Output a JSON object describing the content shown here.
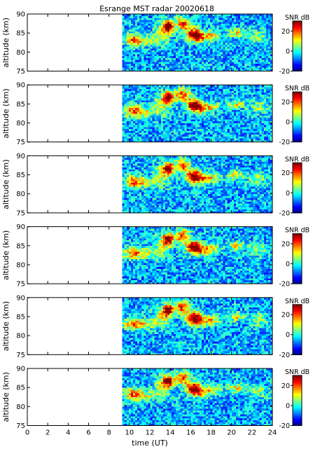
{
  "chart_data": {
    "type": "heatmap",
    "title": "Esrange MST radar 20020618",
    "xlabel": "time (UT)",
    "ylabel": "altitude (km)",
    "xlim": [
      0,
      24
    ],
    "ylim": [
      75,
      90
    ],
    "x_ticks": [
      "0",
      "2",
      "4",
      "6",
      "8",
      "10",
      "12",
      "14",
      "16",
      "18",
      "20",
      "22",
      "24"
    ],
    "y_ticks": [
      "75",
      "80",
      "85",
      "90"
    ],
    "colorbar": {
      "label": "SNR dB",
      "range": [
        -20,
        30
      ],
      "ticks": [
        "20",
        "0",
        "-20"
      ],
      "colormap": "jet"
    },
    "data_start_time": 9.3,
    "panels": [
      {
        "echo_layer_altitude_km": [
          80,
          89
        ],
        "strongest_echo_time": [
          13.8,
          16.2
        ]
      },
      {
        "echo_layer_altitude_km": [
          80,
          89
        ],
        "strongest_echo_time": [
          13.8,
          16.2
        ]
      },
      {
        "echo_layer_altitude_km": [
          80,
          89
        ],
        "strongest_echo_time": [
          13.8,
          16.2
        ]
      },
      {
        "echo_layer_altitude_km": [
          80,
          89
        ],
        "strongest_echo_time": [
          13.8,
          16.2
        ]
      },
      {
        "echo_layer_altitude_km": [
          80,
          89
        ],
        "strongest_echo_time": [
          13.8,
          16.2
        ]
      },
      {
        "echo_layer_altitude_km": [
          80,
          89
        ],
        "strongest_echo_time": [
          13.8,
          16.2
        ]
      }
    ]
  }
}
